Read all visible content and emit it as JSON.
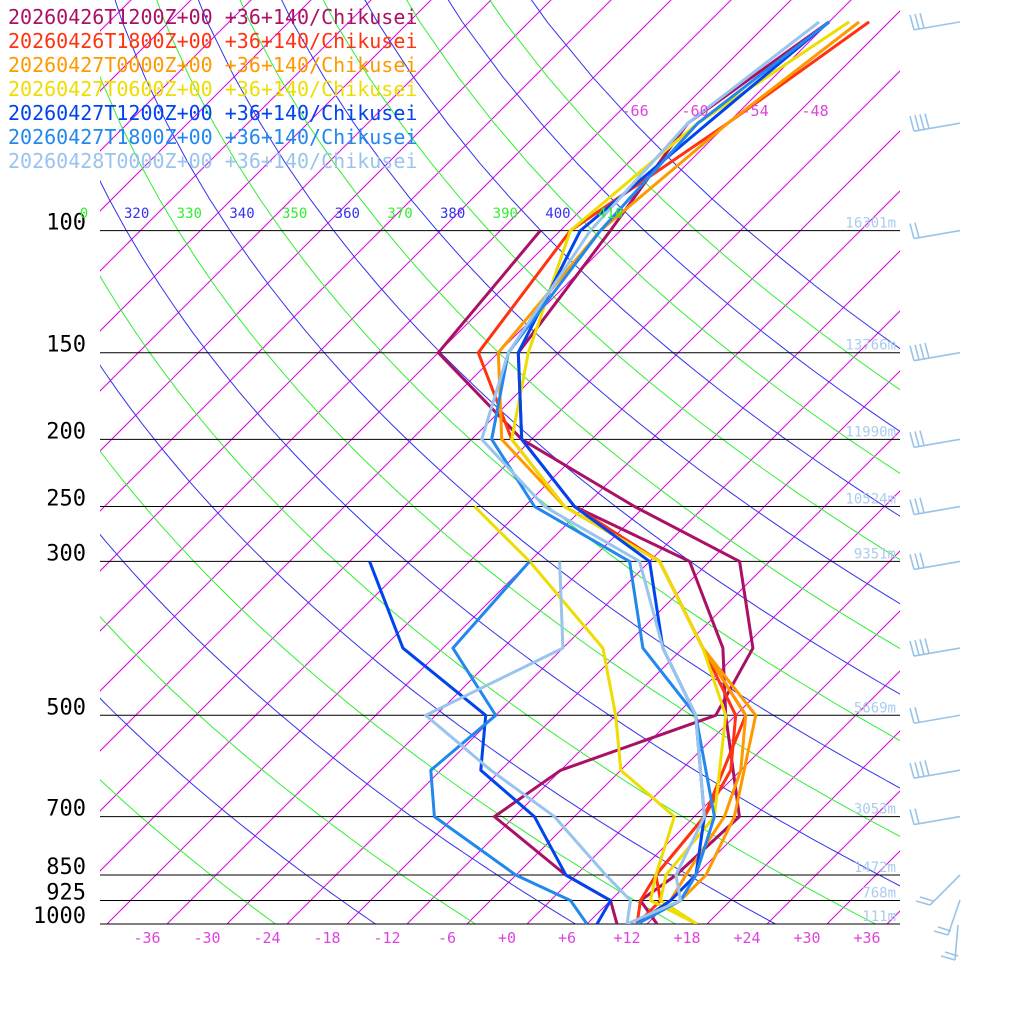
{
  "chart_data": {
    "type": "line",
    "title": "",
    "xlabel": "",
    "ylabel": "",
    "xlim": [
      -40,
      40
    ],
    "ylim_hpa": [
      1000,
      100
    ],
    "x_ticks": [
      -36,
      -30,
      -24,
      -18,
      -12,
      -6,
      0,
      6,
      12,
      18,
      24,
      30,
      36
    ],
    "x_tick_labels": [
      "-36",
      "-30",
      "-24",
      "-18",
      "-12",
      "-6",
      "+0",
      "+6",
      "+12",
      "+18",
      "+24",
      "+30",
      "+36"
    ],
    "pressure_levels": [
      100,
      150,
      200,
      250,
      300,
      500,
      700,
      850,
      925,
      1000
    ],
    "pressure_labels": [
      "100",
      "150",
      "200",
      "250",
      "300",
      "500",
      "700",
      "850",
      "925",
      "1000"
    ],
    "height_labels": [
      "16301m",
      "13766m",
      "11990m",
      "10524m",
      "9351m",
      "5669m",
      "3053m",
      "1472m",
      "768m",
      "111m"
    ],
    "upper_temp_labels": [
      {
        "text": "-66",
        "value": -66
      },
      {
        "text": "-60",
        "value": -60
      },
      {
        "text": "-54",
        "value": -54
      },
      {
        "text": "-48",
        "value": -48
      }
    ],
    "theta_labels": [
      "0",
      "320",
      "330",
      "340",
      "350",
      "360",
      "370",
      "380",
      "390",
      "400",
      "410"
    ],
    "grid": true,
    "legend_position": "top-left",
    "colors": {
      "isotherm": "#dd00dd",
      "theta_blue": "#3333ee",
      "theta_green": "#33ee33",
      "tick_label": "#dd44dd",
      "height_label": "#aaccee",
      "barb": "#99c4e8"
    },
    "series": [
      {
        "name": "20260426T1200Z+00 +36+140/Chikusei",
        "color": "#aa1166",
        "temperature": [
          [
            1000,
            15
          ],
          [
            925,
            11
          ],
          [
            850,
            12
          ],
          [
            700,
            12.5
          ],
          [
            500,
            1
          ],
          [
            400,
            -6
          ],
          [
            300,
            -18
          ],
          [
            250,
            -35
          ],
          [
            200,
            -47
          ],
          [
            150,
            -56
          ],
          [
            100,
            -59
          ],
          [
            70,
            -62
          ],
          [
            50,
            -58
          ]
        ],
        "dewpoint": [
          [
            1000,
            11
          ],
          [
            925,
            8
          ],
          [
            850,
            1
          ],
          [
            700,
            -12
          ],
          [
            600,
            -10
          ],
          [
            500,
            0
          ],
          [
            400,
            -3
          ],
          [
            300,
            -13
          ],
          [
            250,
            -29
          ],
          [
            200,
            -47
          ],
          [
            150,
            -64
          ],
          [
            100,
            -66
          ]
        ]
      },
      {
        "name": "20260426T1800Z+00 +36+140/Chikusei",
        "color": "#ff3311",
        "temperature": [
          [
            1000,
            13
          ],
          [
            925,
            13
          ],
          [
            850,
            10
          ],
          [
            700,
            9
          ],
          [
            500,
            3
          ],
          [
            400,
            -8
          ],
          [
            300,
            -21
          ],
          [
            250,
            -36
          ],
          [
            200,
            -48
          ],
          [
            150,
            -60
          ],
          [
            100,
            -63
          ],
          [
            70,
            -58
          ],
          [
            50,
            -54
          ]
        ],
        "dewpoint": [
          [
            1000,
            13
          ],
          [
            925,
            11
          ],
          [
            850,
            10
          ],
          [
            700,
            9
          ],
          [
            600,
            7
          ],
          [
            500,
            2
          ],
          [
            400,
            -8
          ],
          [
            300,
            -21
          ],
          [
            250,
            -35
          ]
        ]
      },
      {
        "name": "20260427T0000Z+00 +36+140/Chikusei",
        "color": "#ff9900",
        "temperature": [
          [
            1000,
            13
          ],
          [
            925,
            15
          ],
          [
            850,
            15
          ],
          [
            700,
            12
          ],
          [
            500,
            4
          ],
          [
            400,
            -8
          ],
          [
            300,
            -21
          ],
          [
            250,
            -36
          ],
          [
            200,
            -49
          ],
          [
            150,
            -58
          ],
          [
            100,
            -60
          ],
          [
            70,
            -58
          ],
          [
            50,
            -55
          ]
        ],
        "dewpoint": [
          [
            1000,
            13
          ],
          [
            925,
            14
          ],
          [
            850,
            13
          ],
          [
            700,
            11
          ],
          [
            600,
            8
          ],
          [
            500,
            3
          ],
          [
            400,
            -8
          ]
        ]
      },
      {
        "name": "20260427T0600Z+00 +36+140/Chikusei",
        "color": "#eedd00",
        "temperature": [
          [
            1000,
            19
          ],
          [
            925,
            13
          ],
          [
            850,
            11
          ],
          [
            700,
            10
          ],
          [
            500,
            1
          ],
          [
            400,
            -8
          ],
          [
            300,
            -21
          ],
          [
            250,
            -36
          ],
          [
            200,
            -48
          ],
          [
            150,
            -55
          ],
          [
            100,
            -63
          ],
          [
            70,
            -61
          ],
          [
            50,
            -56
          ]
        ],
        "dewpoint": [
          [
            1000,
            19
          ],
          [
            925,
            12
          ],
          [
            850,
            10
          ],
          [
            700,
            6
          ],
          [
            600,
            -4
          ],
          [
            500,
            -10
          ],
          [
            400,
            -18
          ],
          [
            300,
            -34
          ],
          [
            250,
            -45
          ]
        ]
      },
      {
        "name": "20260427T1200Z+00 +36+140/Chikusei",
        "color": "#0044ee",
        "temperature": [
          [
            1000,
            13
          ],
          [
            925,
            14
          ],
          [
            850,
            14
          ],
          [
            700,
            9
          ],
          [
            500,
            -2
          ],
          [
            400,
            -12
          ],
          [
            300,
            -22
          ],
          [
            250,
            -35
          ],
          [
            200,
            -47
          ],
          [
            150,
            -56
          ],
          [
            100,
            -62
          ],
          [
            70,
            -60
          ],
          [
            50,
            -58
          ]
        ],
        "dewpoint": [
          [
            1000,
            9
          ],
          [
            925,
            8
          ],
          [
            850,
            1
          ],
          [
            700,
            -8
          ],
          [
            600,
            -18
          ],
          [
            500,
            -23
          ],
          [
            400,
            -38
          ],
          [
            300,
            -50
          ]
        ]
      },
      {
        "name": "20260427T1800Z+00 +36+140/Chikusei",
        "color": "#2288ee",
        "temperature": [
          [
            1000,
            13
          ],
          [
            925,
            15
          ],
          [
            850,
            14
          ],
          [
            700,
            10
          ],
          [
            500,
            -2
          ],
          [
            400,
            -14
          ],
          [
            300,
            -24
          ],
          [
            250,
            -39
          ],
          [
            200,
            -50
          ],
          [
            150,
            -57
          ],
          [
            100,
            -60
          ],
          [
            70,
            -61
          ],
          [
            50,
            -58
          ]
        ],
        "dewpoint": [
          [
            1000,
            8
          ],
          [
            925,
            4
          ],
          [
            850,
            -4
          ],
          [
            700,
            -18
          ],
          [
            600,
            -23
          ],
          [
            500,
            -22
          ],
          [
            400,
            -33
          ],
          [
            300,
            -34
          ]
        ]
      },
      {
        "name": "20260428T0000Z+00 +36+140/Chikusei",
        "color": "#99c4ee",
        "temperature": [
          [
            1000,
            12
          ],
          [
            925,
            15
          ],
          [
            850,
            12
          ],
          [
            700,
            9
          ],
          [
            500,
            -2
          ],
          [
            400,
            -12
          ],
          [
            300,
            -23
          ],
          [
            250,
            -38
          ],
          [
            200,
            -51
          ],
          [
            150,
            -57
          ],
          [
            100,
            -61
          ],
          [
            70,
            -62
          ],
          [
            50,
            -59
          ]
        ],
        "dewpoint": [
          [
            1000,
            12
          ],
          [
            925,
            10
          ],
          [
            850,
            5
          ],
          [
            700,
            -6
          ],
          [
            600,
            -17
          ],
          [
            500,
            -29
          ],
          [
            400,
            -22
          ],
          [
            300,
            -31
          ]
        ]
      }
    ],
    "wind_barbs": [
      {
        "p": 50,
        "barbs": 3,
        "flags": 0
      },
      {
        "p": 70,
        "barbs": 4,
        "flags": 0
      },
      {
        "p": 100,
        "barbs": 2,
        "flags": 0
      },
      {
        "p": 150,
        "barbs": 4,
        "flags": 0
      },
      {
        "p": 200,
        "barbs": 3,
        "flags": 0
      },
      {
        "p": 250,
        "barbs": 3,
        "flags": 0
      },
      {
        "p": 300,
        "barbs": 3,
        "flags": 0
      },
      {
        "p": 400,
        "barbs": 4,
        "flags": 0
      },
      {
        "p": 500,
        "barbs": 2,
        "flags": 0
      },
      {
        "p": 600,
        "barbs": 4,
        "flags": 0
      },
      {
        "p": 700,
        "barbs": 2,
        "flags": 0
      }
    ]
  }
}
